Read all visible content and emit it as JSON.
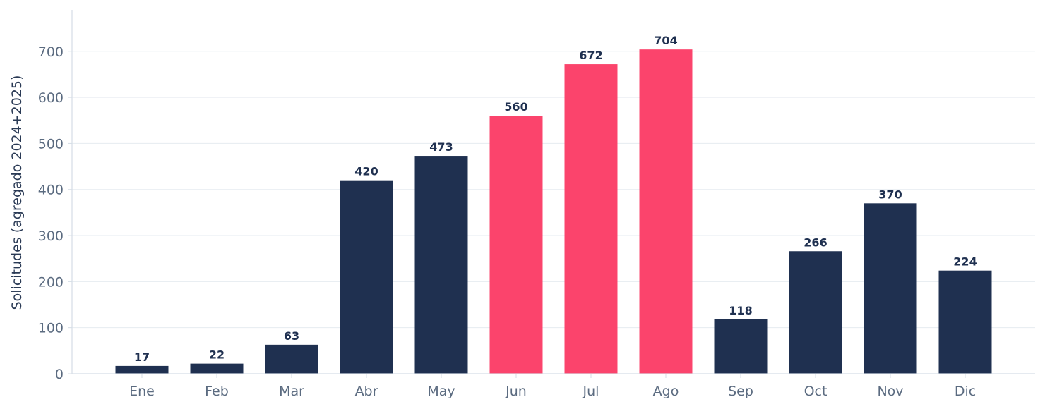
{
  "chart_data": {
    "type": "bar",
    "categories": [
      "Ene",
      "Feb",
      "Mar",
      "Abr",
      "May",
      "Jun",
      "Jul",
      "Ago",
      "Sep",
      "Oct",
      "Nov",
      "Dic"
    ],
    "values": [
      17,
      22,
      63,
      420,
      473,
      560,
      672,
      704,
      118,
      266,
      370,
      224
    ],
    "highlighted": [
      "Jun",
      "Jul",
      "Ago"
    ],
    "ylabel": "Solicitudes (agregado 2024+2025)",
    "xlabel": "",
    "ylim": [
      0,
      790
    ],
    "yticks": [
      0,
      100,
      200,
      300,
      400,
      500,
      600,
      700
    ],
    "grid": "horizontal",
    "colors": {
      "default": "#1f3050",
      "highlight": "#fb446c",
      "grid": "#e6ebf0",
      "axis": "#d5dde6"
    }
  }
}
